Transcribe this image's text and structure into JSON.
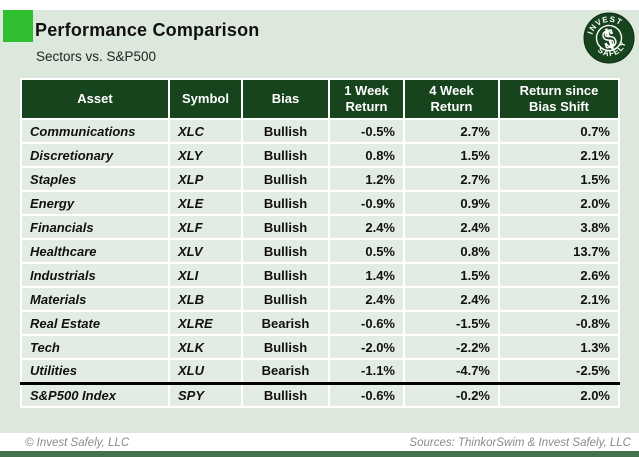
{
  "colors": {
    "page_bg": "#dde8dc",
    "header_bg": "#17431d",
    "cell_bg": "#e3ece3",
    "grid": "#ffffff",
    "pos": "#0a8f0a",
    "neg": "#e50000",
    "accent": "#2fbe2f",
    "footer_bar": "#45714f",
    "footer_text": "#8b8b8b",
    "title_text": "#111111"
  },
  "header": {
    "title": "Performance Comparison",
    "subtitle": "Sectors vs. S&P500",
    "logo": {
      "top_text": "INVEST",
      "bottom_text": "SAFELY",
      "symbol": "$"
    }
  },
  "chart_data": {
    "type": "table",
    "title": "Performance Comparison",
    "subtitle": "Sectors vs. S&P500",
    "columns": [
      "Asset",
      "Symbol",
      "Bias",
      "1 Week\nReturn",
      "4 Week\nReturn",
      "Return since\nBias Shift"
    ],
    "rows": [
      {
        "asset": "Communications",
        "symbol": "XLC",
        "bias": "Bullish",
        "week1": "-0.5%",
        "week4": "2.7%",
        "since_shift": "0.7%"
      },
      {
        "asset": "Discretionary",
        "symbol": "XLY",
        "bias": "Bullish",
        "week1": "0.8%",
        "week4": "1.5%",
        "since_shift": "2.1%"
      },
      {
        "asset": "Staples",
        "symbol": "XLP",
        "bias": "Bullish",
        "week1": "1.2%",
        "week4": "2.7%",
        "since_shift": "1.5%"
      },
      {
        "asset": "Energy",
        "symbol": "XLE",
        "bias": "Bullish",
        "week1": "-0.9%",
        "week4": "0.9%",
        "since_shift": "2.0%"
      },
      {
        "asset": "Financials",
        "symbol": "XLF",
        "bias": "Bullish",
        "week1": "2.4%",
        "week4": "2.4%",
        "since_shift": "3.8%"
      },
      {
        "asset": "Healthcare",
        "symbol": "XLV",
        "bias": "Bullish",
        "week1": "0.5%",
        "week4": "0.8%",
        "since_shift": "13.7%"
      },
      {
        "asset": "Industrials",
        "symbol": "XLI",
        "bias": "Bullish",
        "week1": "1.4%",
        "week4": "1.5%",
        "since_shift": "2.6%"
      },
      {
        "asset": "Materials",
        "symbol": "XLB",
        "bias": "Bullish",
        "week1": "2.4%",
        "week4": "2.4%",
        "since_shift": "2.1%"
      },
      {
        "asset": "Real Estate",
        "symbol": "XLRE",
        "bias": "Bearish",
        "week1": "-0.6%",
        "week4": "-1.5%",
        "since_shift": "-0.8%"
      },
      {
        "asset": "Tech",
        "symbol": "XLK",
        "bias": "Bullish",
        "week1": "-2.0%",
        "week4": "-2.2%",
        "since_shift": "1.3%"
      },
      {
        "asset": "Utilities",
        "symbol": "XLU",
        "bias": "Bearish",
        "week1": "-1.1%",
        "week4": "-4.7%",
        "since_shift": "-2.5%"
      },
      {
        "asset": "S&P500 Index",
        "symbol": "SPY",
        "bias": "Bullish",
        "week1": "-0.6%",
        "week4": "-0.2%",
        "since_shift": "2.0%"
      }
    ],
    "separator_before_row": "S&P500 Index",
    "layout": {
      "grid": "white 2px gridlines",
      "legend_position": "none",
      "bias_color_rule": "Bullish=green, Bearish=red",
      "value_color_rule": "negative=red, positive=green"
    }
  },
  "footer": {
    "left": "© Invest Safely, LLC",
    "right": "Sources: ThinkorSwim & Invest Safely, LLC"
  }
}
